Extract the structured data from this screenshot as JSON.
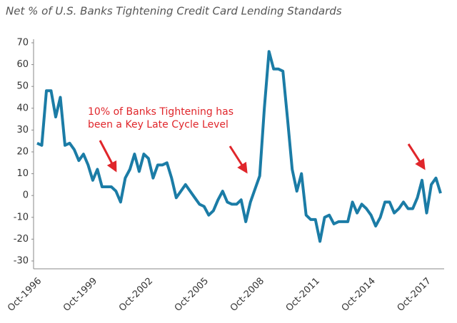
{
  "chart_data": {
    "type": "line",
    "title": "Net % of U.S. Banks Tightening Credit Card Lending Standards",
    "annotation": [
      "10% of Banks Tightening has",
      "been a Key Late Cycle Level"
    ],
    "categories": [
      "Oct-1996",
      null,
      null,
      null,
      null,
      null,
      null,
      null,
      null,
      null,
      null,
      null,
      "Oct-1999",
      null,
      null,
      null,
      null,
      null,
      null,
      null,
      null,
      null,
      null,
      null,
      "Oct-2002",
      null,
      null,
      null,
      null,
      null,
      null,
      null,
      null,
      null,
      null,
      null,
      "Oct-2005",
      null,
      null,
      null,
      null,
      null,
      null,
      null,
      null,
      null,
      null,
      null,
      "Oct-2008",
      null,
      null,
      null,
      null,
      null,
      null,
      null,
      null,
      null,
      null,
      null,
      "Oct-2011",
      null,
      null,
      null,
      null,
      null,
      null,
      null,
      null,
      null,
      null,
      null,
      "Oct-2014",
      null,
      null,
      null,
      null,
      null,
      null,
      null,
      null,
      null,
      null,
      null,
      "Oct-2017",
      null,
      null,
      null
    ],
    "values": [
      24,
      23,
      48,
      48,
      36,
      45,
      23,
      24,
      21,
      16,
      19,
      14,
      7,
      12,
      4,
      4,
      4,
      2,
      -3,
      8,
      12,
      19,
      11,
      19,
      17,
      8,
      14,
      14,
      15,
      8,
      -1,
      2,
      5,
      2,
      -1,
      -4,
      -5,
      -9,
      -7,
      -2,
      2,
      -3,
      -4,
      -4,
      -2,
      -12,
      -3,
      3,
      9,
      40,
      66,
      58,
      58,
      57,
      35,
      12,
      2,
      10,
      -9,
      -11,
      -11,
      -21,
      -10,
      -9,
      -13,
      -12,
      -12,
      -12,
      -3,
      -8,
      -4,
      -6,
      -9,
      -14,
      -10,
      -3,
      -3,
      -8,
      -6,
      -3,
      -6,
      -6,
      -1,
      7,
      -8,
      5,
      8,
      1
    ],
    "color": "#1b7ca6",
    "annotation_color": "#e0262b",
    "ylim": [
      -30,
      70
    ],
    "yticks": [
      -30,
      -20,
      -10,
      0,
      10,
      20,
      30,
      40,
      50,
      60,
      70
    ]
  }
}
